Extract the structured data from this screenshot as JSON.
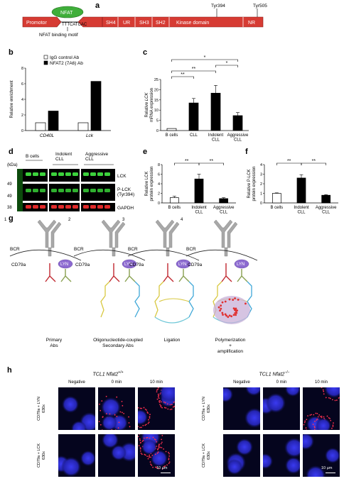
{
  "panels": {
    "a": "a",
    "b": "b",
    "c": "c",
    "d": "d",
    "e": "e",
    "f": "f",
    "g": "g",
    "h": "h"
  },
  "panel_a": {
    "nfat_label": "NFAT",
    "motif_seq": "TTTCATCAC",
    "motif_caption": "NFAT binding motif",
    "tyr394": "Tyr394",
    "tyr505": "Tyr505",
    "domains": [
      "Promotor",
      "SH4",
      "UR",
      "SH3",
      "SH2",
      "Kinase domain",
      "NR"
    ],
    "colors": {
      "domain": "#d63b33",
      "domain_stroke": "#8a1c18",
      "nfat": "#3fae3a"
    }
  },
  "chart_data": [
    {
      "id": "b",
      "type": "bar",
      "ylabel": "Relative enrichment",
      "ylim": [
        0,
        8
      ],
      "yticks": [
        0,
        2,
        4,
        6,
        8
      ],
      "categories": [
        "CD40L",
        "Lck"
      ],
      "legend": [
        "IgG control Ab",
        "NFAT2 (7A6) Ab"
      ],
      "series": [
        {
          "name": "IgG control Ab",
          "values": [
            1,
            1
          ],
          "color": "#ffffff"
        },
        {
          "name": "NFAT2 (7A6) Ab",
          "values": [
            2.5,
            6.3
          ],
          "color": "#000000"
        }
      ]
    },
    {
      "id": "c",
      "type": "bar",
      "ylabel_pre": "Relative ",
      "ylabel_italic": "LCK",
      "ylabel_line2": "mRNA expression",
      "ylim": [
        0,
        25
      ],
      "yticks": [
        0,
        5,
        10,
        15,
        20,
        25
      ],
      "categories": [
        "B cells",
        "CLL",
        "Indolent\nCLL",
        "Aggressive\nCLL"
      ],
      "values": [
        1,
        13.5,
        18.3,
        7.3
      ],
      "errors": [
        0,
        2.2,
        3.8,
        1.5
      ],
      "colors": [
        "#ffffff",
        "#000000",
        "#000000",
        "#000000"
      ],
      "significance": [
        {
          "from": 0,
          "to": 1,
          "label": "**",
          "level": 1
        },
        {
          "from": 0,
          "to": 2,
          "label": "**",
          "level": 2
        },
        {
          "from": 2,
          "to": 3,
          "label": "*",
          "level": 3
        },
        {
          "from": 0,
          "to": 3,
          "label": "*",
          "level": 4
        }
      ]
    },
    {
      "id": "e",
      "type": "bar",
      "ylabel": "Relative LCK\nprotein expression",
      "ylim": [
        0,
        8
      ],
      "yticks": [
        0,
        2,
        4,
        6,
        8
      ],
      "categories": [
        "B cells",
        "Indolent\nCLL",
        "Aggressive\nCLL"
      ],
      "values": [
        1.1,
        5.0,
        0.9
      ],
      "errors": [
        0.3,
        1.0,
        0.2
      ],
      "colors": [
        "#ffffff",
        "#000000",
        "#000000"
      ],
      "significance": [
        {
          "from": 0,
          "to": 1,
          "label": "**",
          "level": 1
        },
        {
          "from": 1,
          "to": 2,
          "label": "**",
          "level": 1
        }
      ]
    },
    {
      "id": "f",
      "type": "bar",
      "ylabel": "Relative P-LCK\nprotein expression",
      "ylim": [
        0,
        4
      ],
      "yticks": [
        0,
        1,
        2,
        3,
        4
      ],
      "categories": [
        "B cells",
        "Indolent\nCLL",
        "Aggressive\nCLL"
      ],
      "values": [
        1.0,
        2.6,
        0.8
      ],
      "errors": [
        0.05,
        0.35,
        0.07
      ],
      "colors": [
        "#ffffff",
        "#000000",
        "#000000"
      ],
      "significance": [
        {
          "from": 0,
          "to": 1,
          "label": "**",
          "level": 1
        },
        {
          "from": 1,
          "to": 2,
          "label": "**",
          "level": 1
        }
      ]
    }
  ],
  "panel_d": {
    "kda": "(kDa)",
    "groups": [
      "B cells",
      "Indolent\nCLL",
      "Aggressive\nCLL"
    ],
    "markers": [
      "49",
      "49",
      "38"
    ],
    "bands": [
      "LCK",
      "P-LCK\n(Tyr394)",
      "GAPDH"
    ]
  },
  "panel_g": {
    "steps": [
      {
        "num": "1",
        "caption": "Primary\nAbs"
      },
      {
        "num": "2",
        "caption": "Oligonucleotide-coupled\nSecondary Abs"
      },
      {
        "num": "3",
        "caption": "Ligation"
      },
      {
        "num": "4",
        "caption": "Polymerization\n+\namplification"
      }
    ],
    "bcr": "BCR",
    "cd79a": "CD79a",
    "lyn": "LYN"
  },
  "panel_h": {
    "left_title_gene": "TCL1 ",
    "left_title_geno": "Nfat2",
    "left_title_sup": "+/+",
    "right_title_gene": "TCL1 ",
    "right_title_geno": "Nfat2",
    "right_title_sup": "−/−",
    "columns": [
      "Negative",
      "0 min",
      "10 min"
    ],
    "rows": [
      "CD79a + LYN\n630x",
      "CD79a + LCK\n630x"
    ],
    "scalebar": "10 µm",
    "red_density": [
      [
        0,
        2,
        6
      ],
      [
        0,
        0,
        5
      ],
      [
        0,
        0,
        5
      ],
      [
        0,
        0,
        0
      ]
    ]
  }
}
